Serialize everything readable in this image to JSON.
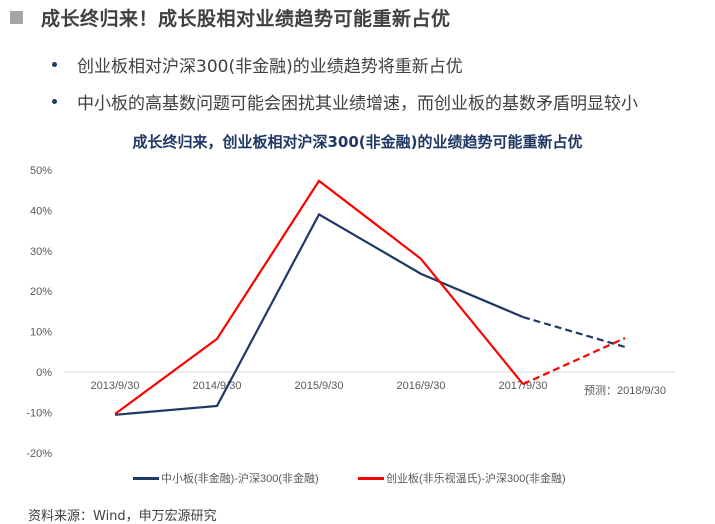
{
  "heading": {
    "title": "成长终归来！成长股相对业绩趋势可能重新占优",
    "bullets": [
      "创业板相对沪深300(非金融)的业绩趋势将重新占优",
      "中小板的高基数问题可能会困扰其业绩增速，而创业板的基数矛盾明显较小"
    ]
  },
  "source": "资料来源：Wind，申万宏源研究",
  "colors": {
    "navy": "#1f3864",
    "red": "#ff0000",
    "grid": "#d9d9d9",
    "text": "#595959"
  },
  "chart_data": {
    "type": "line",
    "title": "成长终归来，创业板相对沪深300(非金融)的业绩趋势可能重新占优",
    "xlabel": "",
    "ylabel": "",
    "categories": [
      "2013/9/30",
      "2014/9/30",
      "2015/9/30",
      "2016/9/30",
      "2017/9/30",
      "预测：2018/9/30"
    ],
    "y_ticks": [
      "50%",
      "40%",
      "30%",
      "20%",
      "10%",
      "0%",
      "-10%",
      "-20%"
    ],
    "ylim": [
      -20,
      50
    ],
    "grid": false,
    "legend_position": "bottom",
    "series": [
      {
        "name": "中小板(非金融)-沪深300(非金融)",
        "color": "#1f3864",
        "values": [
          -10.6,
          -8.4,
          39.0,
          24.3,
          13.6,
          6.2
        ],
        "forecast_from_index": 4
      },
      {
        "name": "创业板(非乐视温氏)-沪深300(非金融)",
        "color": "#ff0000",
        "values": [
          -10.4,
          8.2,
          47.3,
          28.0,
          -3.0,
          8.4
        ],
        "forecast_from_index": 4
      }
    ],
    "annotations": [
      "dashed segments denote forecast (2017/9/30 → 2018/9/30)"
    ]
  }
}
